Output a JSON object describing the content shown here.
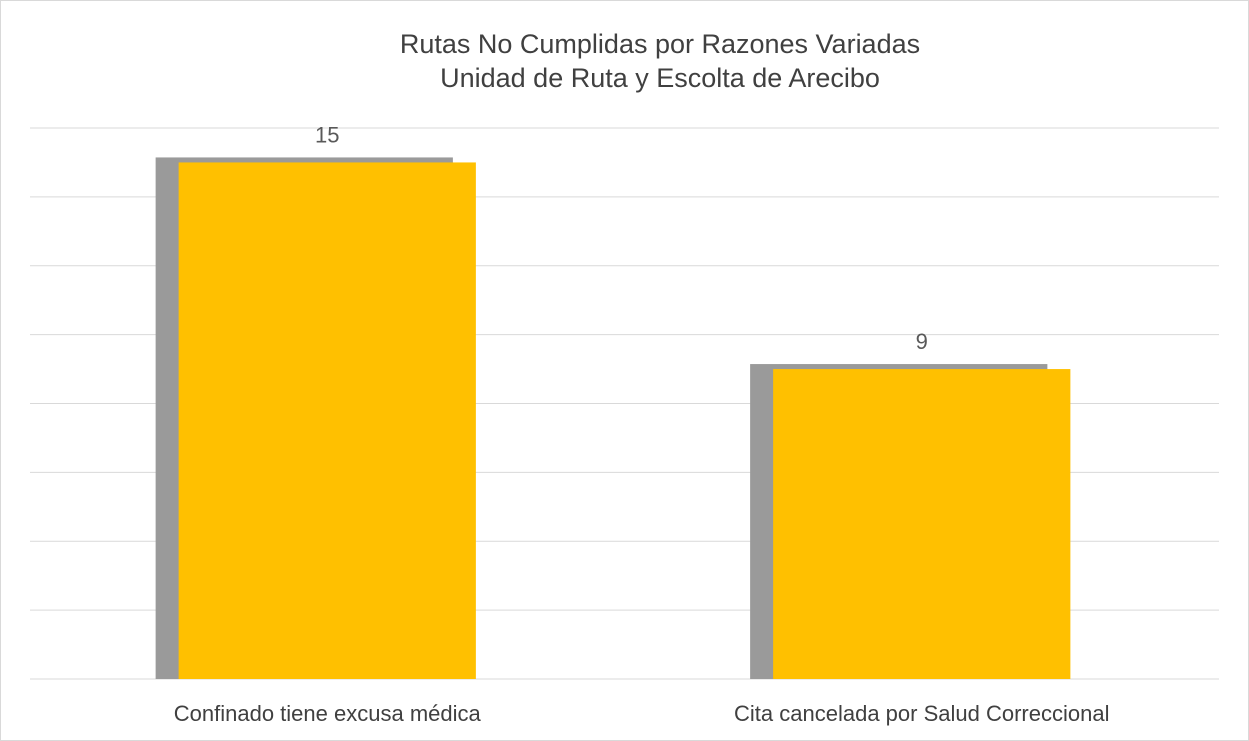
{
  "chart_data": {
    "type": "bar",
    "title": "Rutas No Cumplidas por Razones Variadas",
    "subtitle": "Unidad de Ruta y Escolta de Arecibo",
    "categories": [
      "Confinado tiene excusa médica",
      "Cita cancelada por Salud Correccional"
    ],
    "values": [
      15,
      9
    ],
    "color": "#ffc000",
    "ylim": [
      0,
      16
    ],
    "yticks": [
      0,
      2,
      4,
      6,
      8,
      10,
      12,
      14,
      16
    ],
    "grid": true
  }
}
